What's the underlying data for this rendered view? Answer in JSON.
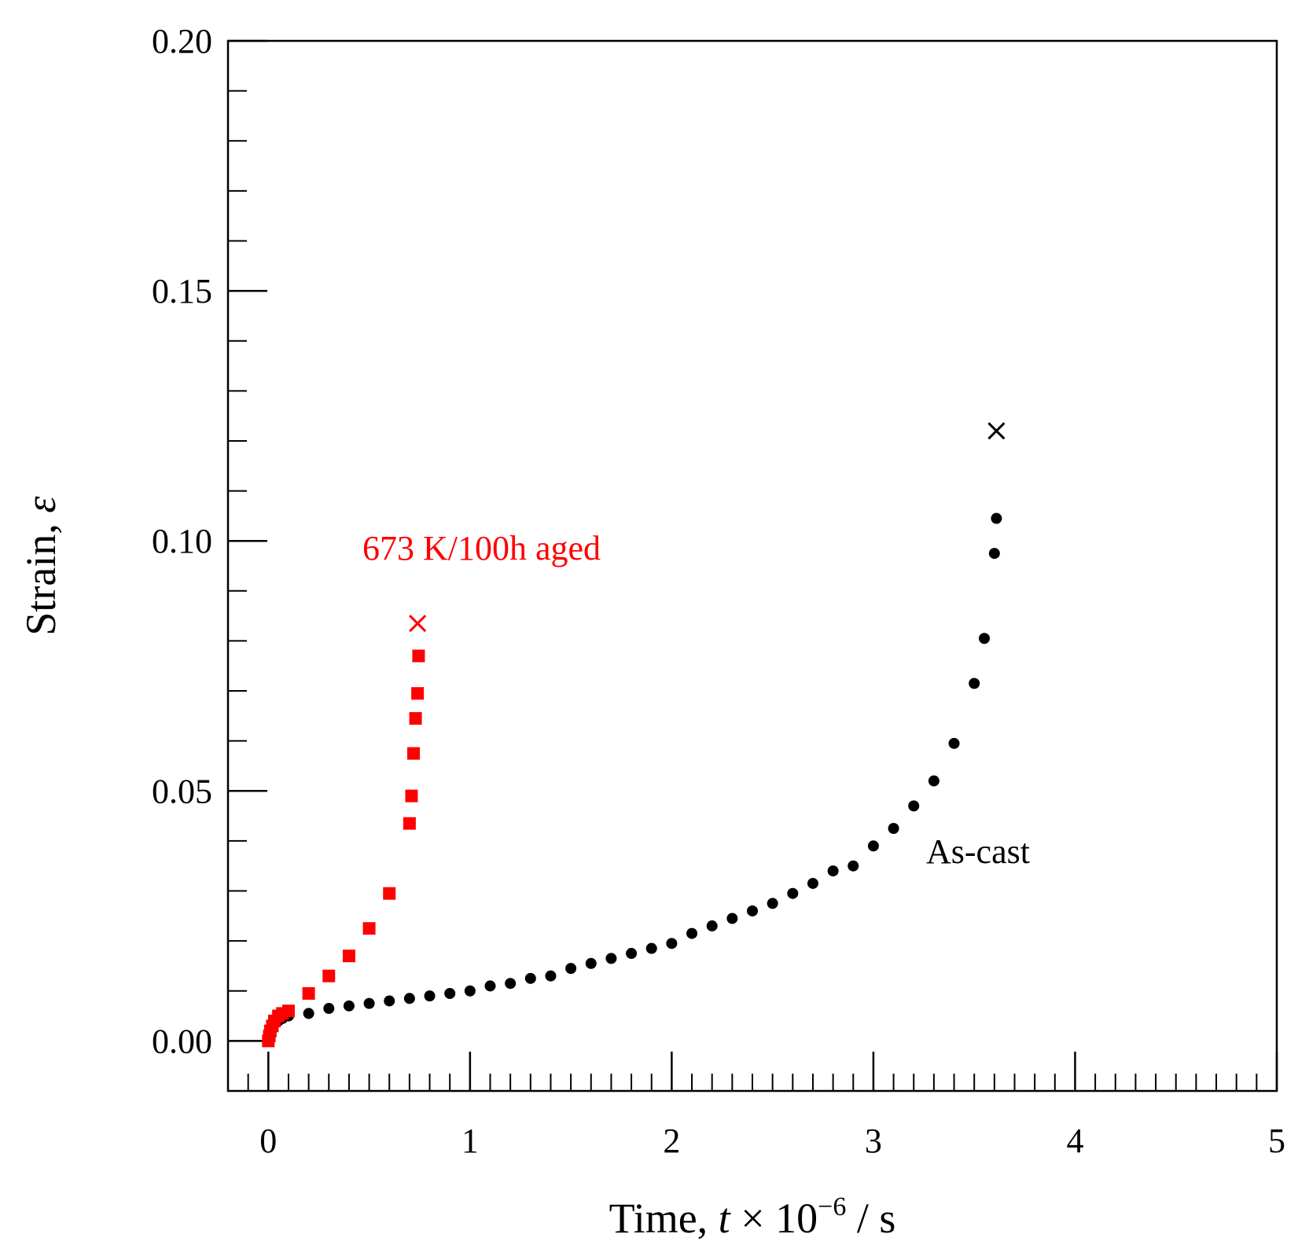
{
  "chart_data": {
    "type": "scatter",
    "title": "",
    "xlabel": {
      "prefix": "Time, ",
      "var": "t",
      "mult": " × 10",
      "exp": "−6",
      "suffix": " / s"
    },
    "ylabel": {
      "prefix": "Strain, ",
      "var": "ε"
    },
    "xlim": [
      -0.2,
      5.0
    ],
    "ylim": [
      -0.01,
      0.2
    ],
    "x_ticks": [
      0,
      1,
      2,
      3,
      4,
      5
    ],
    "x_tick_labels": [
      "0",
      "1",
      "2",
      "3",
      "4",
      "5"
    ],
    "y_ticks": [
      0.0,
      0.05,
      0.1,
      0.15,
      0.2
    ],
    "y_tick_labels": [
      "0.00",
      "0.05",
      "0.10",
      "0.15",
      "0.20"
    ],
    "grid": false,
    "series": [
      {
        "name": "As-cast",
        "label": "As-cast",
        "color": "#000000",
        "marker": "circle",
        "x": [
          0.0,
          0.01,
          0.02,
          0.03,
          0.05,
          0.07,
          0.1,
          0.2,
          0.3,
          0.4,
          0.5,
          0.6,
          0.7,
          0.8,
          0.9,
          1.0,
          1.1,
          1.2,
          1.3,
          1.4,
          1.5,
          1.6,
          1.7,
          1.8,
          1.9,
          2.0,
          2.1,
          2.2,
          2.3,
          2.4,
          2.5,
          2.6,
          2.7,
          2.8,
          2.9,
          3.0,
          3.1,
          3.2,
          3.3,
          3.4,
          3.5,
          3.55,
          3.6,
          3.61
        ],
        "y": [
          0.001,
          0.002,
          0.003,
          0.0035,
          0.004,
          0.0045,
          0.005,
          0.0055,
          0.0065,
          0.007,
          0.0075,
          0.008,
          0.0085,
          0.009,
          0.0095,
          0.01,
          0.011,
          0.0115,
          0.0125,
          0.013,
          0.0145,
          0.0155,
          0.0165,
          0.0175,
          0.0185,
          0.0195,
          0.0215,
          0.023,
          0.0245,
          0.026,
          0.0275,
          0.0295,
          0.0315,
          0.034,
          0.035,
          0.039,
          0.0425,
          0.047,
          0.052,
          0.0595,
          0.0715,
          0.0805,
          0.0975,
          0.1045
        ],
        "rupture": {
          "x": 3.61,
          "y": 0.122
        }
      },
      {
        "name": "673 K/100h aged",
        "label": "673 K/100h aged",
        "color": "#ff0000",
        "marker": "square",
        "x": [
          0.0,
          0.005,
          0.01,
          0.02,
          0.03,
          0.05,
          0.07,
          0.1,
          0.2,
          0.3,
          0.4,
          0.5,
          0.6,
          0.7,
          0.71,
          0.72,
          0.73,
          0.74,
          0.745
        ],
        "y": [
          0.0,
          0.001,
          0.002,
          0.003,
          0.004,
          0.005,
          0.0055,
          0.006,
          0.0095,
          0.013,
          0.017,
          0.0225,
          0.0295,
          0.0435,
          0.049,
          0.0575,
          0.0645,
          0.0695,
          0.077
        ],
        "rupture": {
          "x": 0.74,
          "y": 0.0835
        }
      }
    ]
  }
}
